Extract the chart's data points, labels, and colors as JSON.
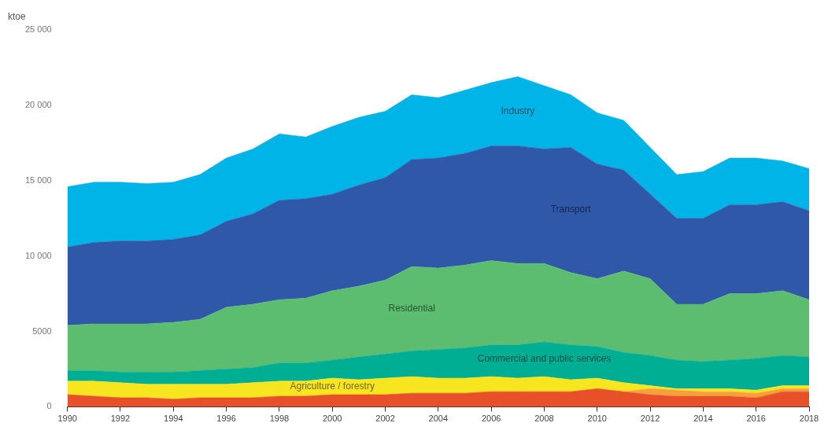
{
  "chart_data": {
    "type": "area",
    "stacked": true,
    "ylabel": "ktoe",
    "x": [
      1990,
      1991,
      1992,
      1993,
      1994,
      1995,
      1996,
      1997,
      1998,
      1999,
      2000,
      2001,
      2002,
      2003,
      2004,
      2005,
      2006,
      2007,
      2008,
      2009,
      2010,
      2011,
      2012,
      2013,
      2014,
      2015,
      2016,
      2017,
      2018
    ],
    "xlim": [
      1990,
      2018
    ],
    "xticks": [
      1990,
      1992,
      1994,
      1996,
      1998,
      2000,
      2002,
      2004,
      2006,
      2008,
      2010,
      2012,
      2014,
      2016,
      2018
    ],
    "ylim": [
      0,
      25000
    ],
    "yticks": [
      {
        "value": 0,
        "label": "0"
      },
      {
        "value": 5000,
        "label": "5000"
      },
      {
        "value": 10000,
        "label": "10 000"
      },
      {
        "value": 15000,
        "label": "15 000"
      },
      {
        "value": 20000,
        "label": "20 000"
      },
      {
        "value": 25000,
        "label": "25 000"
      }
    ],
    "grid": false,
    "legend": false,
    "series": [
      {
        "color": "#e8502a",
        "values": [
          800,
          700,
          600,
          600,
          500,
          600,
          600,
          600,
          700,
          700,
          800,
          800,
          800,
          900,
          900,
          900,
          1000,
          1000,
          1000,
          1000,
          1200,
          1000,
          800,
          700,
          700,
          700,
          600,
          1000,
          1000
        ]
      },
      {
        "color": "#f5a03a",
        "values": [
          0,
          0,
          0,
          0,
          0,
          0,
          0,
          0,
          0,
          0,
          0,
          0,
          0,
          0,
          0,
          0,
          0,
          0,
          0,
          0,
          0,
          0,
          400,
          400,
          300,
          300,
          300,
          200,
          200
        ]
      },
      {
        "name": "Agriculture / forestry",
        "color": "#f7e51f",
        "values": [
          900,
          1000,
          1000,
          900,
          1000,
          900,
          900,
          1000,
          1000,
          1000,
          1100,
          1000,
          1100,
          1100,
          1000,
          1000,
          1000,
          900,
          1000,
          800,
          700,
          600,
          200,
          100,
          200,
          200,
          200,
          200,
          200
        ]
      },
      {
        "name": "Commercial and public services",
        "color": "#00ae94",
        "values": [
          700,
          700,
          700,
          800,
          800,
          900,
          1000,
          1000,
          1200,
          1200,
          1200,
          1500,
          1600,
          1700,
          1900,
          2000,
          2100,
          2200,
          2300,
          2300,
          2100,
          2000,
          2000,
          1900,
          1800,
          1900,
          2100,
          2000,
          1900
        ]
      },
      {
        "name": "Residential",
        "color": "#5cbd70",
        "values": [
          3000,
          3100,
          3200,
          3200,
          3300,
          3400,
          4100,
          4200,
          4200,
          4300,
          4600,
          4700,
          4900,
          5600,
          5400,
          5500,
          5600,
          5400,
          5200,
          4800,
          4500,
          5400,
          5100,
          3700,
          3800,
          4400,
          4300,
          4300,
          3800
        ]
      },
      {
        "name": "Transport",
        "color": "#2f58a8",
        "values": [
          5200,
          5400,
          5500,
          5500,
          5500,
          5600,
          5700,
          6000,
          6600,
          6600,
          6400,
          6700,
          6800,
          7100,
          7300,
          7400,
          7600,
          7800,
          7600,
          8300,
          7600,
          6700,
          5600,
          5700,
          5700,
          5900,
          5900,
          5900,
          5900
        ]
      },
      {
        "name": "Industry",
        "color": "#00b4e8",
        "values": [
          4000,
          4000,
          3900,
          3800,
          3800,
          4000,
          4200,
          4300,
          4400,
          4100,
          4500,
          4500,
          4400,
          4300,
          4000,
          4200,
          4200,
          4600,
          4200,
          3500,
          3400,
          3300,
          3100,
          2900,
          3100,
          3100,
          3100,
          2700,
          2800
        ]
      }
    ]
  }
}
